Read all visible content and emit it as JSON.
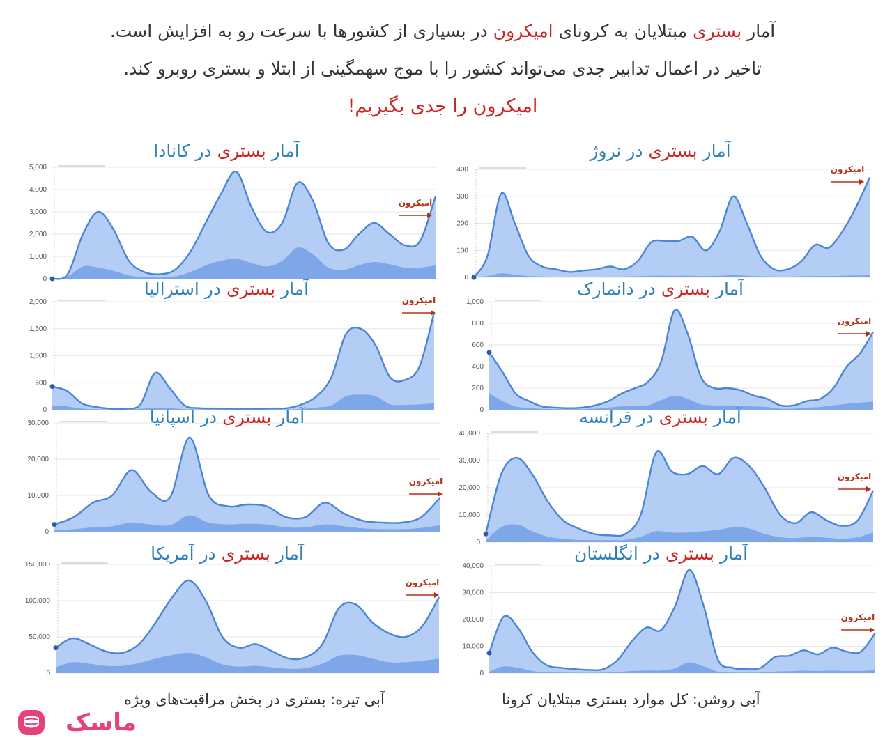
{
  "header": {
    "line1_pre": "آمار ",
    "line1_hl1": "بستری",
    "line1_mid": " مبتلایان به کرونای ",
    "line1_hl2": "امیکرون",
    "line1_post": " در بسیاری از کشورها با سرعت رو به افزایش است.",
    "line2": "تاخیر در اعمال تدابیر جدی می‌تواند کشور را با موج سهمگینی از ابتلا و بستری روبرو کند.",
    "cta": "امیکرون را جدی بگیریم!"
  },
  "title_parts": {
    "prefix": "آمار ",
    "highlight": "بستری",
    "in": " در "
  },
  "omicron_label": "امیکرون",
  "legend": {
    "light": "آبی روشن: کل موارد بستری مبتلایان کرونا",
    "dark": "آبی تیره: بستری در بخش مراقبت‌های ویژه"
  },
  "logo": {
    "text": "ماسک"
  },
  "colors": {
    "light_fill": "#b3cdf5",
    "line": "#4a85d6",
    "dark_fill": "#7ea7ea",
    "highlight": "#cc2222",
    "title": "#2f7fb8",
    "arrow": "#b03018",
    "logo": "#e8407a"
  },
  "chart_data": [
    {
      "id": "canada",
      "type": "area",
      "country": "کانادا",
      "yticks": [
        "0",
        "1,000",
        "2,000",
        "3,000",
        "4,000",
        "5,000"
      ],
      "ylim": [
        0,
        5000
      ],
      "series": [
        {
          "name": "آبی روشن",
          "values": [
            0,
            200,
            2000,
            3000,
            2200,
            800,
            300,
            200,
            400,
            1200,
            2500,
            3800,
            4800,
            3200,
            2100,
            2500,
            4300,
            3500,
            1600,
            1300,
            2000,
            2500,
            2000,
            1500,
            1700,
            3700
          ]
        },
        {
          "name": "آبی تیره",
          "values": [
            0,
            100,
            550,
            500,
            350,
            150,
            80,
            60,
            100,
            300,
            600,
            800,
            900,
            700,
            550,
            800,
            1400,
            1100,
            500,
            400,
            600,
            750,
            650,
            500,
            500,
            600
          ]
        }
      ]
    },
    {
      "id": "norway",
      "type": "area",
      "country": "نروژ",
      "yticks": [
        "0",
        "100",
        "200",
        "300",
        "400"
      ],
      "ylim": [
        0,
        400
      ],
      "series": [
        {
          "name": "آبی روشن",
          "values": [
            0,
            80,
            310,
            200,
            80,
            40,
            30,
            20,
            25,
            30,
            40,
            30,
            60,
            130,
            135,
            135,
            150,
            100,
            170,
            300,
            200,
            80,
            30,
            30,
            60,
            120,
            110,
            170,
            260,
            370
          ]
        },
        {
          "name": "آبی تیره",
          "values": [
            0,
            5,
            15,
            10,
            5,
            3,
            2,
            2,
            2,
            2,
            3,
            3,
            4,
            6,
            6,
            6,
            6,
            5,
            6,
            8,
            6,
            4,
            3,
            3,
            4,
            5,
            5,
            6,
            7,
            8
          ]
        }
      ]
    },
    {
      "id": "australia",
      "type": "area",
      "country": "استرالیا",
      "yticks": [
        "0",
        "500",
        "1,000",
        "1,500",
        "2,000"
      ],
      "ylim": [
        0,
        2000
      ],
      "series": [
        {
          "name": "آبی روشن",
          "values": [
            430,
            350,
            120,
            50,
            20,
            20,
            100,
            680,
            400,
            80,
            30,
            25,
            20,
            20,
            20,
            25,
            30,
            100,
            250,
            600,
            1400,
            1500,
            1200,
            600,
            550,
            800,
            1800
          ]
        },
        {
          "name": "آبی تیره",
          "values": [
            80,
            60,
            20,
            10,
            5,
            5,
            15,
            40,
            30,
            10,
            5,
            5,
            5,
            5,
            5,
            5,
            5,
            15,
            40,
            80,
            250,
            280,
            250,
            100,
            90,
            100,
            120
          ]
        }
      ]
    },
    {
      "id": "denmark",
      "type": "area",
      "country": "دانمارک",
      "yticks": [
        "0",
        "200",
        "400",
        "600",
        "800",
        "1,000"
      ],
      "ylim": [
        0,
        1000
      ],
      "series": [
        {
          "name": "آبی روشن",
          "values": [
            530,
            350,
            150,
            80,
            30,
            20,
            15,
            20,
            40,
            80,
            150,
            200,
            260,
            450,
            920,
            700,
            300,
            200,
            200,
            180,
            130,
            100,
            40,
            40,
            80,
            100,
            200,
            400,
            520,
            720
          ]
        },
        {
          "name": "آبی تیره",
          "values": [
            150,
            80,
            30,
            15,
            8,
            5,
            5,
            5,
            10,
            20,
            30,
            35,
            40,
            90,
            130,
            100,
            50,
            40,
            40,
            35,
            30,
            25,
            10,
            10,
            20,
            25,
            40,
            55,
            65,
            75
          ]
        }
      ]
    },
    {
      "id": "spain",
      "type": "area",
      "country": "اسپانیا",
      "yticks": [
        "0",
        "10,000",
        "20,000",
        "30,000"
      ],
      "ylim": [
        0,
        30000
      ],
      "series": [
        {
          "name": "آبی روشن",
          "values": [
            2000,
            4000,
            8000,
            10000,
            17000,
            11000,
            9500,
            26000,
            10000,
            7000,
            7500,
            7000,
            4000,
            4000,
            8000,
            5000,
            3000,
            2500,
            2500,
            4000,
            9500
          ]
        },
        {
          "name": "آبی تیره",
          "values": [
            300,
            700,
            1200,
            1500,
            2500,
            2000,
            1800,
            4500,
            2500,
            2000,
            2200,
            2000,
            1200,
            1200,
            2000,
            1500,
            900,
            700,
            700,
            1000,
            1800
          ]
        }
      ]
    },
    {
      "id": "france",
      "type": "area",
      "country": "فرانسه",
      "yticks": [
        "0",
        "10,000",
        "20,000",
        "30,000",
        "40,000"
      ],
      "ylim": [
        0,
        40000
      ],
      "series": [
        {
          "name": "آبی روشن",
          "values": [
            3000,
            25000,
            31000,
            25000,
            15000,
            8000,
            5000,
            3000,
            2500,
            3000,
            10000,
            33000,
            26000,
            25000,
            28000,
            25000,
            31000,
            28000,
            20000,
            10000,
            7000,
            11000,
            8000,
            6000,
            8000,
            19000
          ]
        },
        {
          "name": "آبی تیره",
          "values": [
            500,
            5500,
            6500,
            4000,
            2000,
            1200,
            800,
            700,
            700,
            800,
            2000,
            4000,
            3500,
            3500,
            4000,
            4500,
            5500,
            5000,
            3000,
            1800,
            1500,
            2000,
            1600,
            1200,
            1800,
            3500
          ]
        }
      ]
    },
    {
      "id": "usa",
      "type": "area",
      "country": "آمریکا",
      "yticks": [
        "0",
        "50,000",
        "100,000",
        "150,000"
      ],
      "ylim": [
        0,
        150000
      ],
      "series": [
        {
          "name": "آبی روشن",
          "values": [
            35000,
            48000,
            40000,
            30000,
            28000,
            40000,
            70000,
            105000,
            128000,
            100000,
            50000,
            35000,
            40000,
            30000,
            20000,
            22000,
            40000,
            90000,
            95000,
            70000,
            55000,
            50000,
            65000,
            105000
          ]
        },
        {
          "name": "آبی تیره",
          "values": [
            8000,
            15000,
            13000,
            10000,
            10000,
            14000,
            20000,
            25000,
            28000,
            22000,
            12000,
            9000,
            10000,
            8000,
            6000,
            7000,
            13000,
            24000,
            25000,
            20000,
            15000,
            15000,
            17000,
            20000
          ]
        }
      ]
    },
    {
      "id": "uk",
      "type": "area",
      "country": "انگلستان",
      "yticks": [
        "0",
        "10,000",
        "20,000",
        "30,000",
        "40,000"
      ],
      "ylim": [
        0,
        40000
      ],
      "series": [
        {
          "name": "آبی روشن",
          "values": [
            7500,
            21000,
            17000,
            8000,
            3000,
            2000,
            1500,
            1200,
            1500,
            5000,
            12000,
            17000,
            16000,
            25000,
            38500,
            25000,
            5000,
            2000,
            1500,
            2000,
            6000,
            6500,
            8500,
            7000,
            9500,
            8000,
            8000,
            15000
          ]
        },
        {
          "name": "آبی تیره",
          "values": [
            500,
            2500,
            2000,
            800,
            300,
            200,
            150,
            100,
            150,
            400,
            800,
            1000,
            1000,
            1800,
            4000,
            2500,
            500,
            200,
            150,
            200,
            600,
            700,
            900,
            800,
            900,
            800,
            800,
            1200
          ]
        }
      ]
    }
  ]
}
